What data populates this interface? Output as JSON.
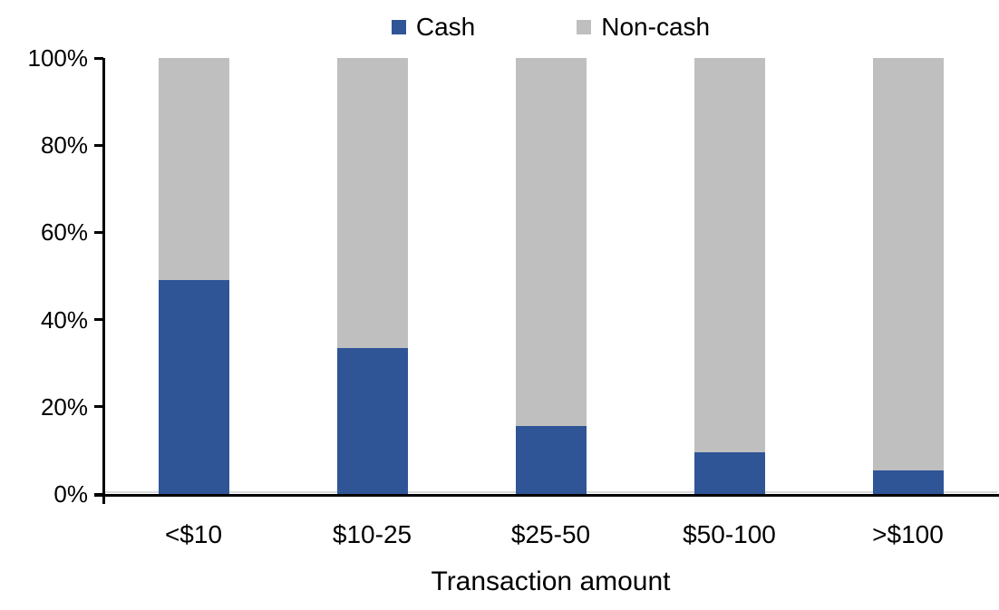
{
  "chart_data": {
    "type": "bar",
    "stacked": "100%",
    "title": "",
    "xlabel": "Transaction amount",
    "ylabel": "",
    "categories": [
      "<$10",
      "$10-25",
      "$25-50",
      "$50-100",
      ">$100"
    ],
    "series": [
      {
        "name": "Cash",
        "color": "#2F5597",
        "values": [
          49,
          33.5,
          15.5,
          9.5,
          5.5
        ]
      },
      {
        "name": "Non-cash",
        "color": "#BFBFBF",
        "values": [
          51,
          66.5,
          84.5,
          90.5,
          94.5
        ]
      }
    ],
    "ylim": [
      0,
      100
    ],
    "yticks": [
      {
        "value": 0,
        "label": "0%"
      },
      {
        "value": 20,
        "label": "20%"
      },
      {
        "value": 40,
        "label": "40%"
      },
      {
        "value": 60,
        "label": "60%"
      },
      {
        "value": 80,
        "label": "80%"
      },
      {
        "value": 100,
        "label": "100%"
      }
    ],
    "grid": false,
    "legend_position": "top-center",
    "colors": {
      "axis": "#000000",
      "text": "#000000",
      "baseline": "#D9D9D9",
      "background": "#FFFFFF"
    }
  }
}
